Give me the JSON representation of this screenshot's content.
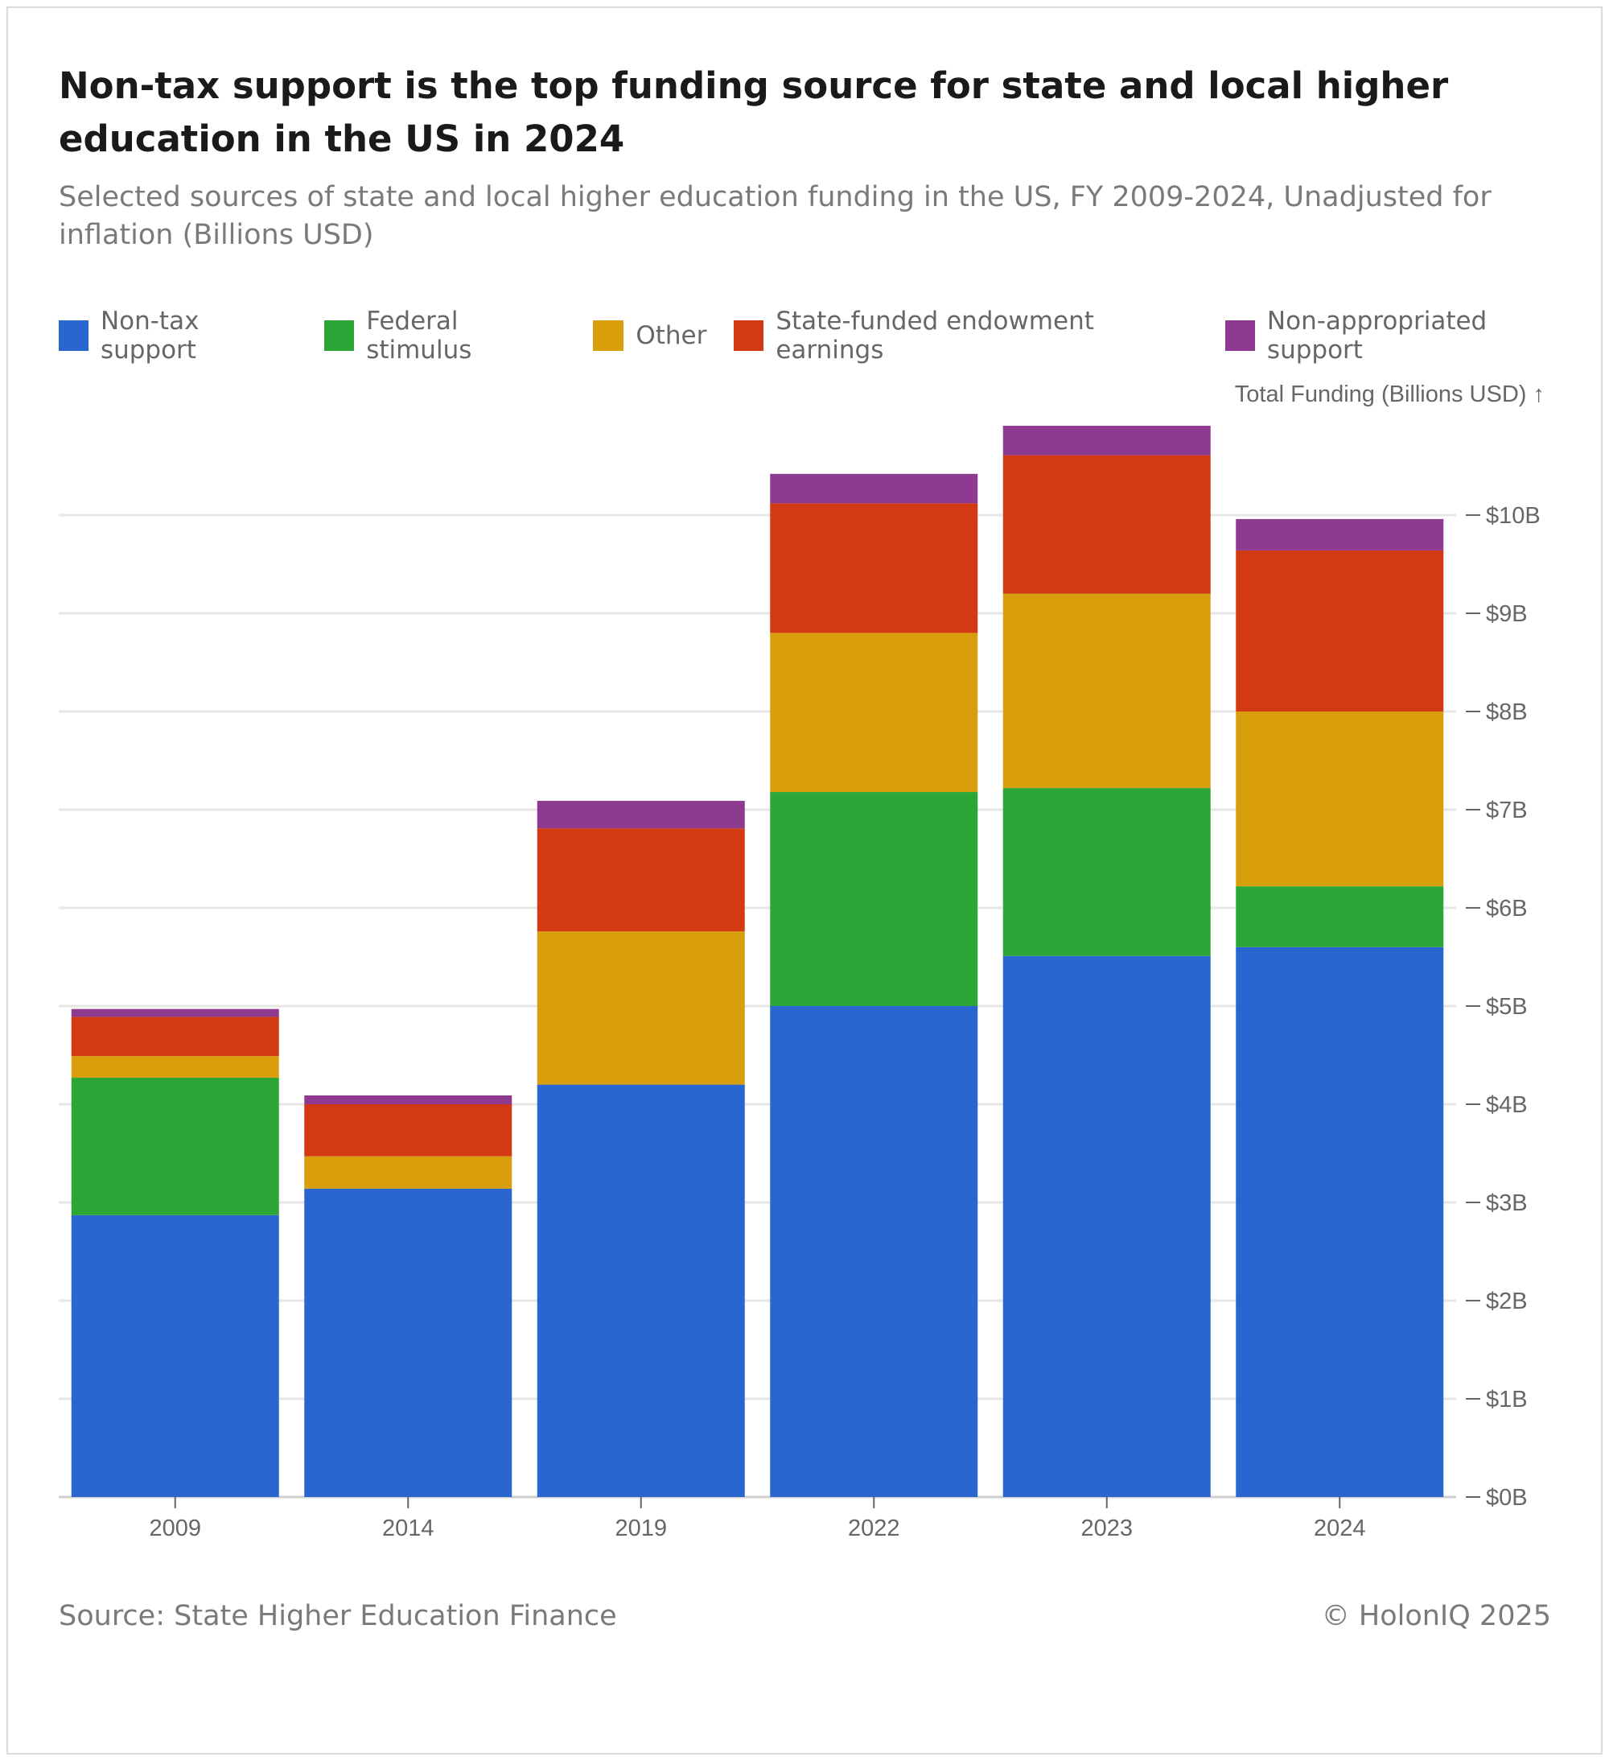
{
  "title": "Non-tax support is the top funding source for state and local higher education in the US in 2024",
  "subtitle": "Selected sources of state and local higher education funding in the US, FY 2009-2024, Unadjusted for inflation (Billions USD)",
  "source": "Source: State Higher Education Finance",
  "copyright": "© HolonIQ 2025",
  "chart_data": {
    "type": "bar",
    "stacked": true,
    "categories": [
      "2009",
      "2014",
      "2019",
      "2022",
      "2023",
      "2024"
    ],
    "ylabel": "Total Funding (Billions USD) ↑",
    "ylim": [
      0,
      11
    ],
    "yticks": [
      0,
      1,
      2,
      3,
      4,
      5,
      6,
      7,
      8,
      9,
      10
    ],
    "ytick_labels": [
      "$0B",
      "$1B",
      "$2B",
      "$3B",
      "$4B",
      "$5B",
      "$6B",
      "$7B",
      "$8B",
      "$9B",
      "$10B"
    ],
    "grid": true,
    "y_axis_position": "right",
    "legend_placement": "top-left",
    "series": [
      {
        "name": "Non-tax support",
        "color": "#2966cf",
        "values": [
          2.87,
          3.14,
          4.2,
          5.0,
          5.51,
          5.6
        ]
      },
      {
        "name": "Federal stimulus",
        "color": "#2ca636",
        "values": [
          1.4,
          0,
          0,
          2.18,
          1.71,
          0.62
        ]
      },
      {
        "name": "Other",
        "color": "#d99e0b",
        "values": [
          0.22,
          0.33,
          1.56,
          1.62,
          1.98,
          1.78
        ]
      },
      {
        "name": "State-funded endowment earnings",
        "color": "#d13a13",
        "values": [
          0.4,
          0.53,
          1.05,
          1.32,
          1.41,
          1.64
        ]
      },
      {
        "name": "Non-appropriated support",
        "color": "#8e3a91",
        "values": [
          0.08,
          0.09,
          0.28,
          0.3,
          0.3,
          0.32
        ]
      }
    ]
  }
}
